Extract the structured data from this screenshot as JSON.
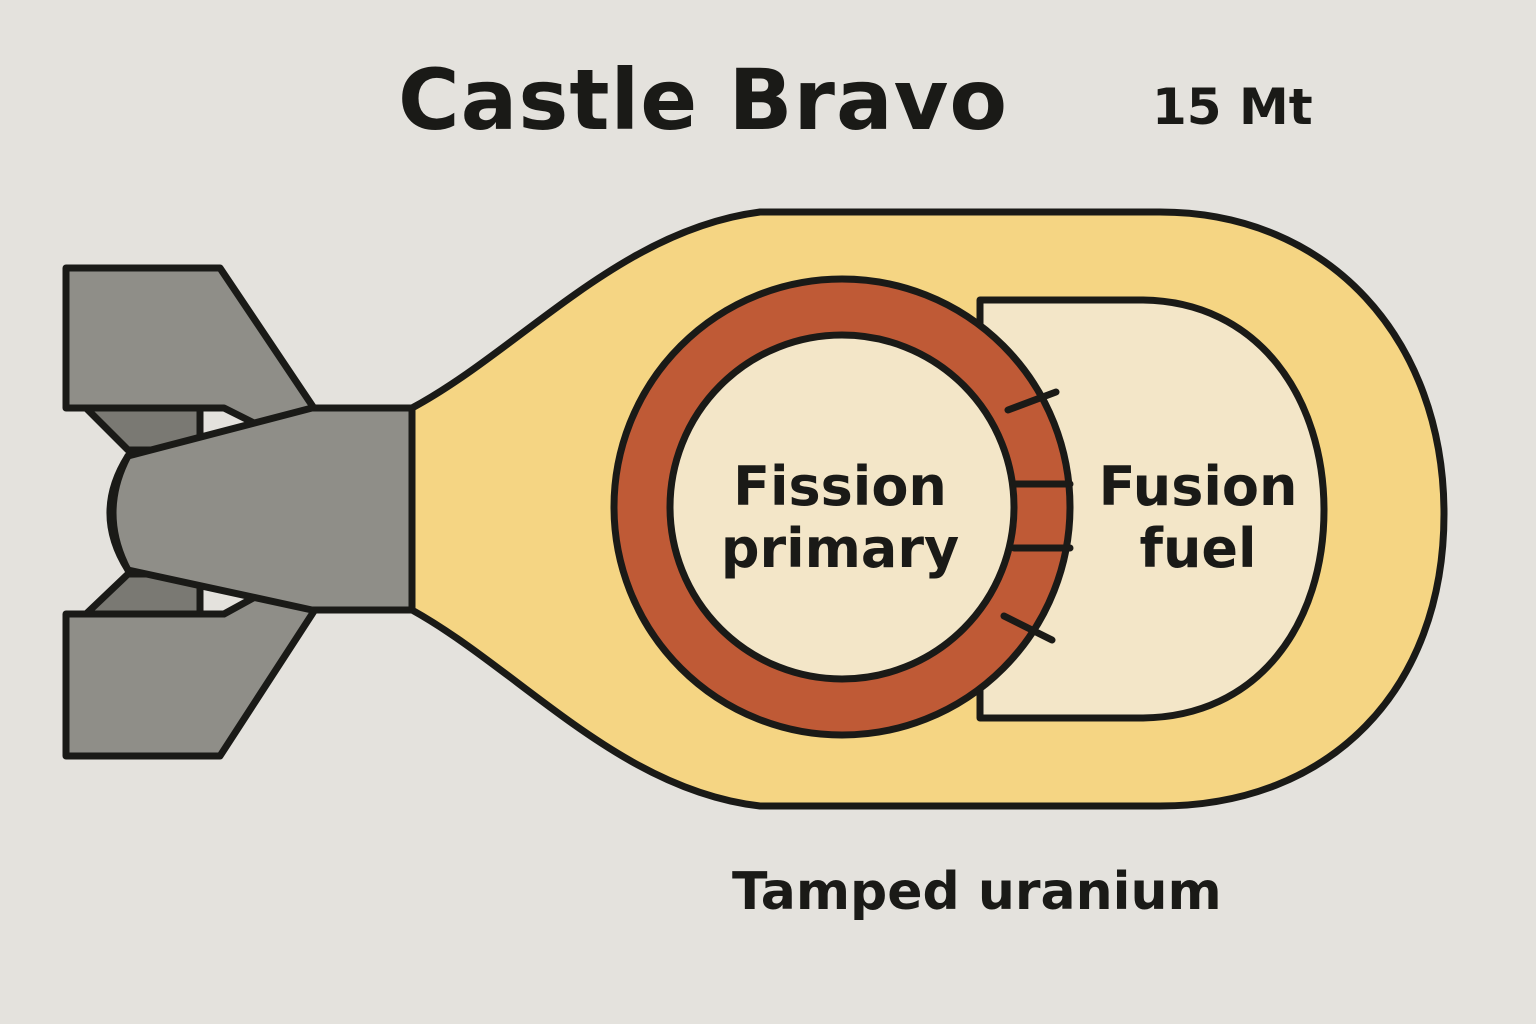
{
  "title": "Castle Bravo",
  "yield": "15 Mt",
  "labels": {
    "fission_line1": "Fission",
    "fission_line2": "primary",
    "fusion_line1": "Fusion",
    "fusion_line2": "fuel",
    "tamper": "Tamped uranium"
  },
  "colors": {
    "background": "#e4e2dd",
    "casing_yellow": "#f5d583",
    "inner_cream": "#f3e6c8",
    "fission_ring": "#bf5a36",
    "fins_gray": "#8f8e88",
    "outline": "#1a1a17"
  }
}
